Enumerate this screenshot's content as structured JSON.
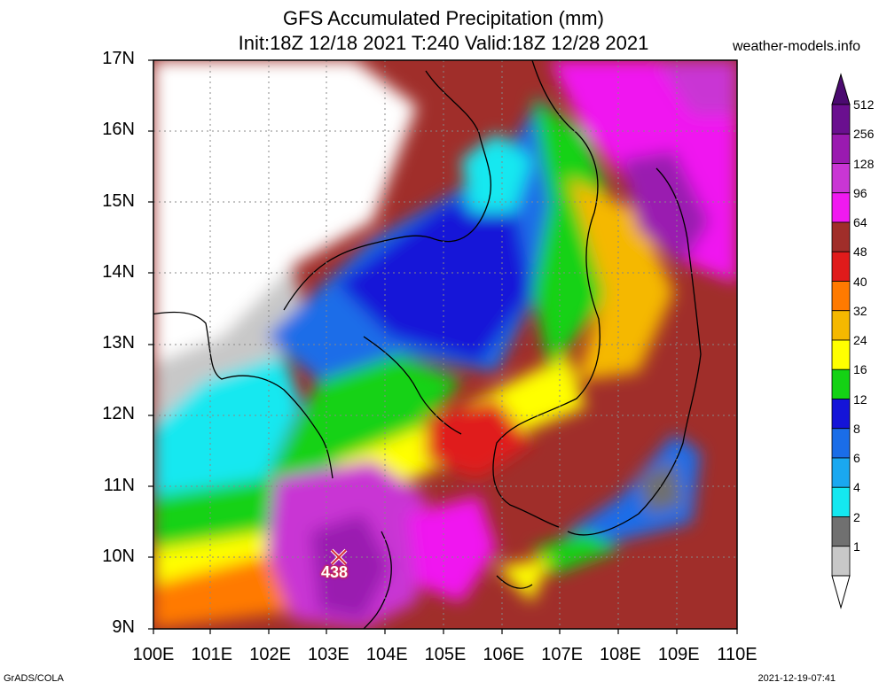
{
  "title": {
    "line1": "GFS Accumulated Precipitation (mm)",
    "line2": "Init:18Z 12/18 2021 T:240 Valid:18Z 12/28 2021"
  },
  "site_credit": "weather-models.info",
  "map": {
    "lon_range": [
      100,
      110
    ],
    "lat_range": [
      9,
      17
    ],
    "lon_ticks": [
      "100E",
      "101E",
      "102E",
      "103E",
      "104E",
      "105E",
      "106E",
      "107E",
      "108E",
      "109E",
      "110E"
    ],
    "lat_ticks": [
      "17N",
      "16N",
      "15N",
      "14N",
      "13N",
      "12N",
      "11N",
      "10N",
      "9N"
    ],
    "grid": true,
    "max_marker": {
      "lon": 103.2,
      "lat": 10.0,
      "value": "438"
    }
  },
  "colorbar": {
    "labels": [
      "512",
      "256",
      "128",
      "96",
      "64",
      "48",
      "40",
      "32",
      "24",
      "16",
      "12",
      "8",
      "6",
      "4",
      "2",
      "1"
    ],
    "colors": [
      "#6a0f8f",
      "#9a1ab0",
      "#c936d4",
      "#f019f0",
      "#a02e2a",
      "#e01b1b",
      "#ff7a00",
      "#f5b800",
      "#ffff00",
      "#14d214",
      "#1414d8",
      "#1a6de8",
      "#1aa8f0",
      "#14e8f0",
      "#707070",
      "#c8c8c8"
    ]
  },
  "footer": {
    "left": "GrADS/COLA",
    "right": "2021-12-19-07:41"
  }
}
